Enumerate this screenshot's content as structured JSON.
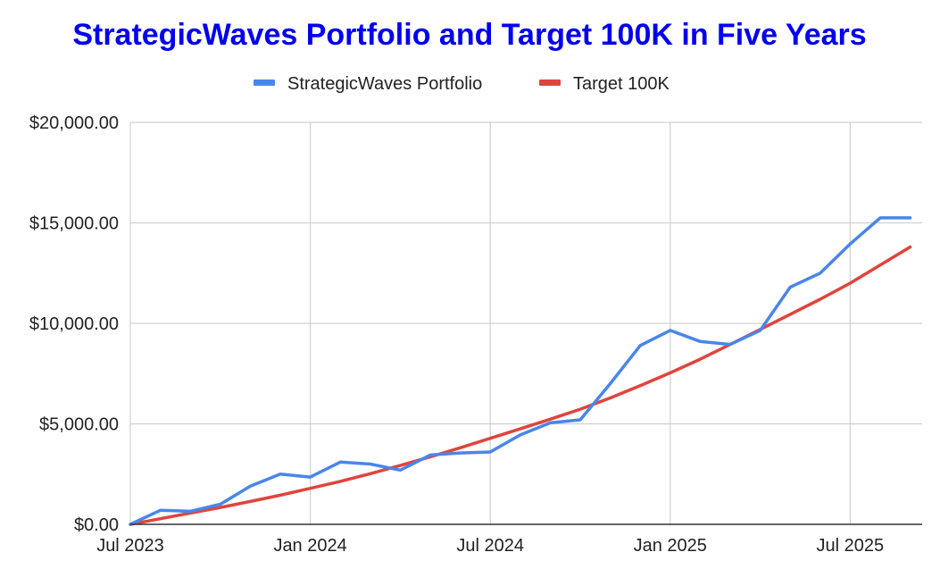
{
  "chart_data": {
    "type": "line",
    "title": "StrategicWaves Portfolio and Target 100K in Five Years",
    "title_color": "#0000ee",
    "xlabel": "",
    "ylabel": "",
    "ylim": [
      0,
      20000
    ],
    "y_ticks": [
      {
        "value": 0,
        "label": "$0.00"
      },
      {
        "value": 5000,
        "label": "$5,000.00"
      },
      {
        "value": 10000,
        "label": "$10,000.00"
      },
      {
        "value": 15000,
        "label": "$15,000.00"
      },
      {
        "value": 20000,
        "label": "$20,000.00"
      }
    ],
    "xlim": [
      0,
      26.4
    ],
    "x_ticks": [
      {
        "value": 0,
        "label": "Jul 2023"
      },
      {
        "value": 6,
        "label": "Jan 2024"
      },
      {
        "value": 12,
        "label": "Jul 2024"
      },
      {
        "value": 18,
        "label": "Jan 2025"
      },
      {
        "value": 24,
        "label": "Jul 2025"
      }
    ],
    "grid": true,
    "legend_position": "top",
    "series": [
      {
        "name": "StrategicWaves Portfolio",
        "color": "#4a86e8",
        "points": [
          [
            0,
            0
          ],
          [
            1,
            700
          ],
          [
            2,
            650
          ],
          [
            3,
            1000
          ],
          [
            4,
            1900
          ],
          [
            5,
            2500
          ],
          [
            6,
            2350
          ],
          [
            7,
            3100
          ],
          [
            8,
            3000
          ],
          [
            9,
            2700
          ],
          [
            10,
            3450
          ],
          [
            11,
            3550
          ],
          [
            12,
            3600
          ],
          [
            13,
            4450
          ],
          [
            14,
            5050
          ],
          [
            15,
            5200
          ],
          [
            16,
            7000
          ],
          [
            17,
            8900
          ],
          [
            18,
            9650
          ],
          [
            19,
            9100
          ],
          [
            20,
            8950
          ],
          [
            21,
            9650
          ],
          [
            22,
            11800
          ],
          [
            23,
            12500
          ],
          [
            24,
            13950
          ],
          [
            25,
            15250
          ],
          [
            26,
            15250
          ]
        ]
      },
      {
        "name": "Target 100K",
        "color": "#e0443c",
        "points": [
          [
            0,
            0
          ],
          [
            1,
            280
          ],
          [
            2,
            560
          ],
          [
            3,
            840
          ],
          [
            4,
            1140
          ],
          [
            5,
            1450
          ],
          [
            6,
            1790
          ],
          [
            7,
            2140
          ],
          [
            8,
            2520
          ],
          [
            9,
            2930
          ],
          [
            10,
            3360
          ],
          [
            11,
            3810
          ],
          [
            12,
            4280
          ],
          [
            13,
            4750
          ],
          [
            14,
            5230
          ],
          [
            15,
            5730
          ],
          [
            16,
            6290
          ],
          [
            17,
            6900
          ],
          [
            18,
            7540
          ],
          [
            19,
            8220
          ],
          [
            20,
            8950
          ],
          [
            21,
            9700
          ],
          [
            22,
            10450
          ],
          [
            23,
            11200
          ],
          [
            24,
            12000
          ],
          [
            25,
            12900
          ],
          [
            26,
            13800
          ]
        ]
      }
    ]
  }
}
